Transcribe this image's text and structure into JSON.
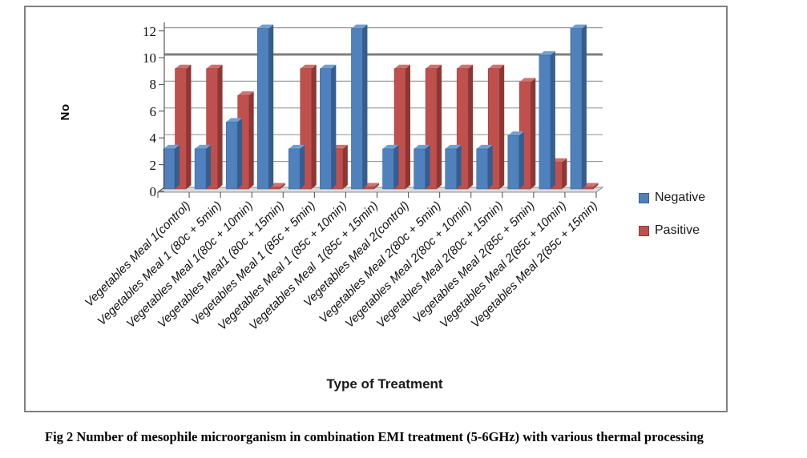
{
  "figure": {
    "caption": "Fig 2 Number of mesophile microorganism in combination EMI treatment (5-6GHz) with various thermal processing"
  },
  "chart_data": {
    "type": "bar",
    "style": "3d-clustered-column",
    "title": "",
    "xlabel": "Type of Treatment",
    "ylabel": "No",
    "ylim": [
      0,
      12
    ],
    "yticks": [
      0,
      2,
      4,
      6,
      8,
      10,
      12
    ],
    "grid": true,
    "emphasized_gridline": 10,
    "legend_position": "right",
    "categories": [
      "Vegetables Meal 1(control)",
      "Vegetables Meal 1 (80c + 5min)",
      "Vegetables Meal 1(80c + 10min)",
      "Vegetables Meal1 (80c + 15min)",
      "Vegetables Meal 1 (85c + 5min)",
      "Vegetables Meal 1 (85c + 10min)",
      "Vegetables Meal  1(85c + 15min)",
      "Vegetables Meal 2(control)",
      "Vegetables Meal 2(80c + 5min)",
      "Vegetables Meal 2(80c + 10min)",
      "Vegetables Meal 2(80c + 15min)",
      "Vegetables Meal 2(85c + 5min)",
      "Vegetables Meal 2(85c + 10min)",
      "Vegetables Meal 2(85c + 15min)"
    ],
    "series": [
      {
        "name": "Negative",
        "color": "#4F81BD",
        "color_top": "#729FCE",
        "color_side": "#355D8D",
        "values": [
          3,
          3,
          5,
          12,
          3,
          9,
          12,
          3,
          3,
          3,
          3,
          4,
          10,
          12
        ]
      },
      {
        "name": "Pasitive",
        "color": "#C0504D",
        "color_top": "#CC7370",
        "color_side": "#8D3734",
        "values": [
          9,
          9,
          7,
          0.15,
          9,
          3,
          0.15,
          9,
          9,
          9,
          9,
          8,
          2,
          0.15
        ]
      }
    ]
  }
}
